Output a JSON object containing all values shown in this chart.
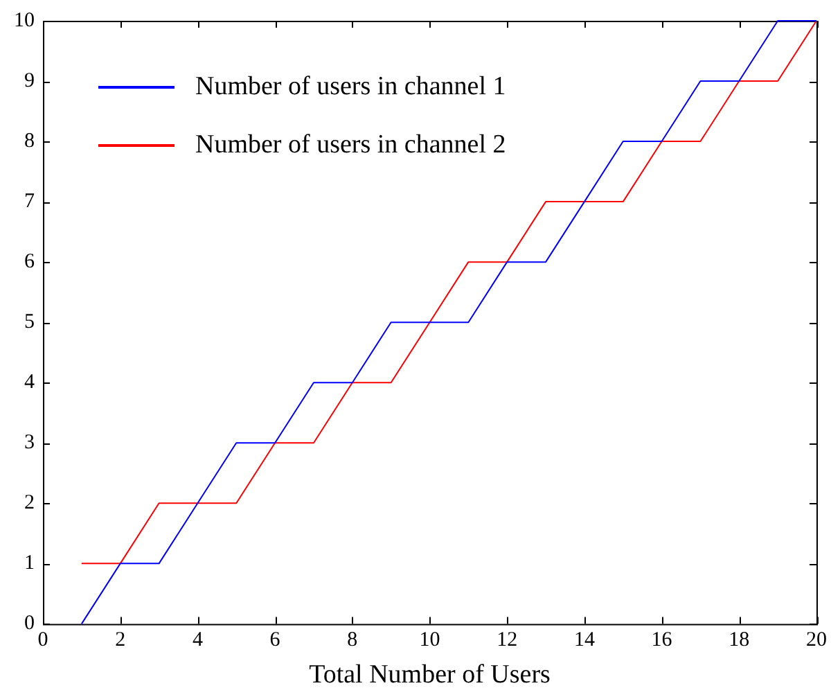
{
  "chart_data": {
    "type": "line",
    "xlabel": "Total Number of Users",
    "x": [
      1,
      2,
      3,
      4,
      5,
      6,
      7,
      8,
      9,
      10,
      11,
      12,
      13,
      14,
      15,
      16,
      17,
      18,
      19,
      20
    ],
    "series": [
      {
        "name": "Number of users in channel 1",
        "color": "#0000ff",
        "values": [
          0,
          1,
          1,
          2,
          3,
          3,
          4,
          4,
          5,
          5,
          5,
          6,
          6,
          7,
          8,
          8,
          9,
          9,
          10,
          10
        ]
      },
      {
        "name": "Number of users in channel 2",
        "color": "#ff0000",
        "values": [
          1,
          1,
          2,
          2,
          2,
          3,
          3,
          4,
          4,
          5,
          6,
          6,
          7,
          7,
          7,
          8,
          8,
          9,
          9,
          10
        ]
      }
    ],
    "xlim": [
      0,
      20
    ],
    "xticks": [
      0,
      2,
      4,
      6,
      8,
      10,
      12,
      14,
      16,
      18,
      20
    ],
    "ylim": [
      0,
      10
    ],
    "yticks": [
      0,
      1,
      2,
      3,
      4,
      5,
      6,
      7,
      8,
      9,
      10
    ],
    "legend": "top left",
    "grid": false,
    "marker": "none",
    "line_style": "solid"
  }
}
